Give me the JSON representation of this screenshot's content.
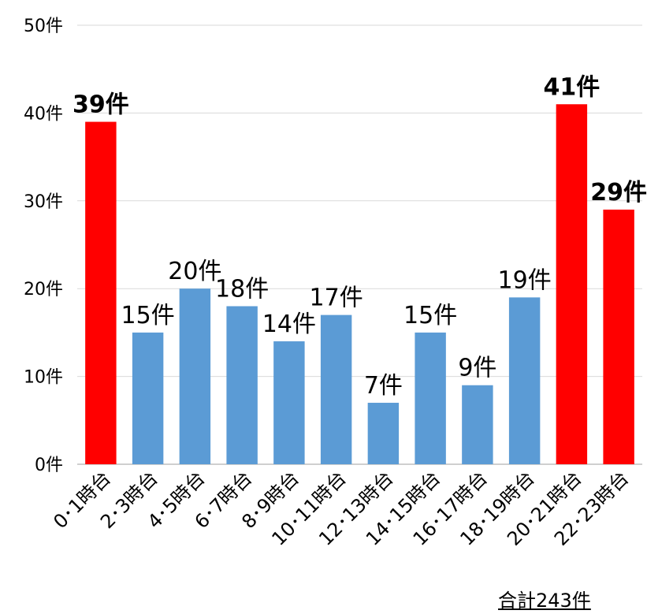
{
  "chart_data": {
    "type": "bar",
    "title": "",
    "xlabel": "",
    "ylabel": "",
    "ylim": [
      0,
      50
    ],
    "yticks": [
      "0件",
      "10件",
      "20件",
      "30件",
      "40件",
      "50件"
    ],
    "categories": [
      "0･1時台",
      "2･3時台",
      "4･5時台",
      "6･7時台",
      "8･9時台",
      "10･11時台",
      "12･13時台",
      "14･15時台",
      "16･17時台",
      "18･19時台",
      "20･21時台",
      "22･23時台"
    ],
    "values": [
      39,
      15,
      20,
      18,
      14,
      17,
      7,
      15,
      9,
      19,
      41,
      29
    ],
    "data_labels": [
      "39件",
      "15件",
      "20件",
      "18件",
      "14件",
      "17件",
      "7件",
      "15件",
      "9件",
      "19件",
      "41件",
      "29件"
    ],
    "highlighted": [
      true,
      false,
      false,
      false,
      false,
      false,
      false,
      false,
      false,
      false,
      true,
      true
    ],
    "colors": {
      "normal": "#5b9bd5",
      "highlight": "#ff0000",
      "grid": "#d9d9d9",
      "axis": "#bfbfbf"
    },
    "grid": true,
    "legend": "none",
    "annotation": "合計243件"
  }
}
